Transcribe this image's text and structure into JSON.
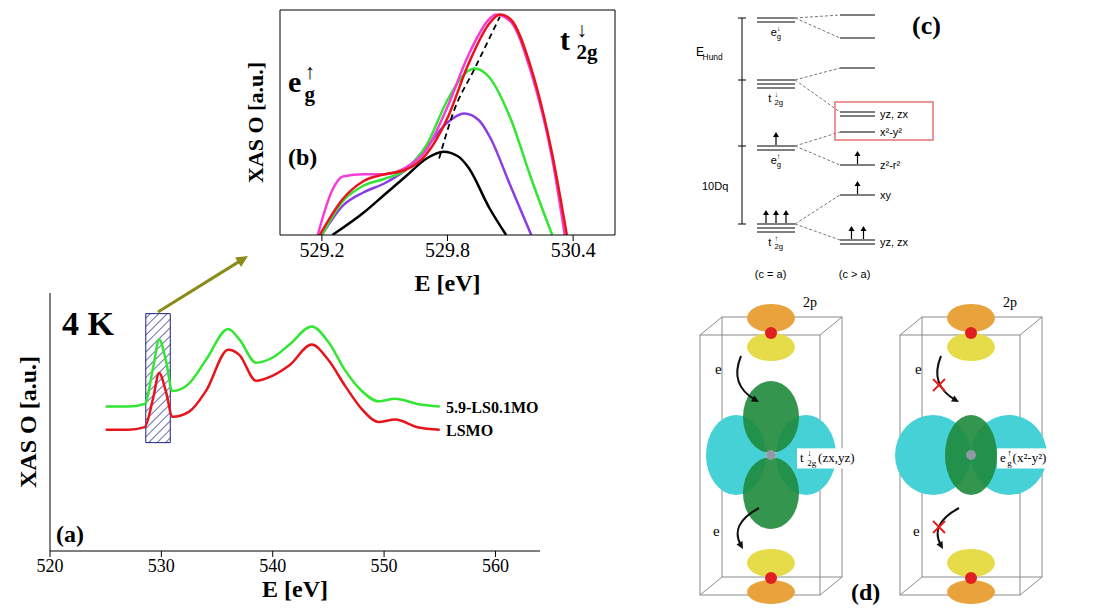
{
  "chart_data": [
    {
      "type": "line",
      "panel_label": "(a)",
      "annotation": "4 K",
      "xlabel": "E [eV]",
      "ylabel": "XAS O [a.u.]",
      "xlim": [
        520,
        564
      ],
      "xticks": [
        520,
        530,
        540,
        550,
        560
      ],
      "ylim": [
        0,
        1
      ],
      "tick_labels": "x",
      "shaded_range": {
        "x": [
          528.6,
          530.8
        ],
        "y": [
          0.42,
          0.92
        ]
      },
      "x": [
        525,
        527,
        528.5,
        529.3,
        529.8,
        530.4,
        531,
        532.5,
        534,
        536,
        537,
        538.5,
        540,
        541.5,
        543.5,
        545,
        546.5,
        548,
        549.5,
        551,
        553,
        555
      ],
      "series": [
        {
          "name": "5.9-LS0.1MO",
          "color": "#33e633",
          "values": [
            0.56,
            0.56,
            0.57,
            0.72,
            0.82,
            0.74,
            0.62,
            0.65,
            0.74,
            0.86,
            0.82,
            0.73,
            0.75,
            0.8,
            0.87,
            0.81,
            0.7,
            0.62,
            0.58,
            0.59,
            0.57,
            0.56
          ]
        },
        {
          "name": "LSMO",
          "color": "#e8141b",
          "values": [
            0.47,
            0.47,
            0.48,
            0.6,
            0.69,
            0.62,
            0.52,
            0.54,
            0.62,
            0.78,
            0.76,
            0.66,
            0.68,
            0.72,
            0.8,
            0.74,
            0.64,
            0.55,
            0.5,
            0.51,
            0.48,
            0.47
          ]
        }
      ]
    },
    {
      "type": "line",
      "panel_label": "(b)",
      "xlabel": "E [eV]",
      "ylabel": "XAS O [a.u.]",
      "xlim": [
        529.0,
        530.6
      ],
      "xticks": [
        529.2,
        529.8,
        530.4
      ],
      "ylim": [
        0,
        1
      ],
      "tick_labels": "x",
      "annotations": [
        {
          "base": "e",
          "sub": "g",
          "sup": "↑"
        },
        {
          "base": "t",
          "sub": "2g",
          "sup": "↓"
        }
      ],
      "series": [
        {
          "color": "#000000",
          "x": [
            529.25,
            529.4,
            529.5,
            529.6,
            529.7,
            529.78,
            529.85,
            529.9,
            530.0,
            530.08
          ],
          "values": [
            0,
            0.1,
            0.18,
            0.26,
            0.34,
            0.37,
            0.35,
            0.3,
            0.12,
            0
          ]
        },
        {
          "color": "#8b3ee0",
          "x": [
            529.2,
            529.3,
            529.4,
            529.5,
            529.6,
            529.7,
            529.8,
            529.88,
            529.95,
            530.0,
            530.1,
            530.2
          ],
          "values": [
            0,
            0.13,
            0.19,
            0.23,
            0.29,
            0.39,
            0.5,
            0.54,
            0.51,
            0.44,
            0.22,
            0
          ]
        },
        {
          "color": "#33e633",
          "x": [
            529.2,
            529.3,
            529.4,
            529.5,
            529.6,
            529.7,
            529.8,
            529.9,
            529.93,
            530.0,
            530.1,
            530.2,
            530.3
          ],
          "values": [
            0,
            0.15,
            0.22,
            0.25,
            0.29,
            0.4,
            0.6,
            0.73,
            0.74,
            0.7,
            0.52,
            0.25,
            0
          ]
        },
        {
          "color": "#f23fd8",
          "x": [
            529.18,
            529.25,
            529.3,
            529.4,
            529.5,
            529.6,
            529.7,
            529.8,
            529.9,
            530.0,
            530.03,
            530.1,
            530.2,
            530.3,
            530.36
          ],
          "values": [
            0,
            0.2,
            0.26,
            0.27,
            0.27,
            0.3,
            0.38,
            0.57,
            0.8,
            0.96,
            0.98,
            0.95,
            0.72,
            0.34,
            0
          ]
        },
        {
          "color": "#e8141b",
          "x": [
            529.19,
            529.3,
            529.4,
            529.5,
            529.6,
            529.7,
            529.8,
            529.9,
            530.0,
            530.05,
            530.1,
            530.2,
            530.3,
            530.37
          ],
          "values": [
            0,
            0.16,
            0.24,
            0.27,
            0.29,
            0.36,
            0.52,
            0.76,
            0.94,
            0.98,
            0.96,
            0.74,
            0.36,
            0
          ]
        }
      ],
      "peak_trend": {
        "color": "#000000",
        "line_style": "dashed",
        "x": [
          529.76,
          529.83,
          529.93,
          530.05
        ],
        "values": [
          0.34,
          0.55,
          0.74,
          0.97
        ]
      }
    }
  ],
  "diagram_c": {
    "panel_label": "(c)",
    "gaps": [
      {
        "base": "E",
        "sub": "Hund"
      },
      "10Dq"
    ],
    "columns": [
      {
        "label": "(c = a)",
        "levels": [
          {
            "label": {
              "base": "e",
              "sub": "g",
              "sup": "↓"
            },
            "lines": 2,
            "electrons": 0
          },
          {
            "label": {
              "base": "t",
              "sub": "2g",
              "sup": "↓"
            },
            "lines": 3,
            "electrons": 0
          },
          {
            "label": {
              "base": "e",
              "sub": "g",
              "sup": "↑"
            },
            "lines": 2,
            "electrons": 1
          },
          {
            "label": {
              "base": "t",
              "sub": "2g",
              "sup": "↑"
            },
            "lines": 3,
            "electrons": 3
          }
        ]
      },
      {
        "label": "(c > a)",
        "levels": [
          {
            "label": null,
            "lines": 1,
            "electrons": 0
          },
          {
            "label": null,
            "lines": 1,
            "electrons": 0
          },
          {
            "label": null,
            "lines": 1,
            "electrons": 0
          },
          {
            "label": "yz, zx",
            "lines": 2,
            "electrons": 0,
            "highlighted": true
          },
          {
            "label": "x²-y²",
            "lines": 1,
            "electrons": 0,
            "highlighted": true
          },
          {
            "label": "z²-r²",
            "lines": 1,
            "electrons": 1
          },
          {
            "label": "xy",
            "lines": 1,
            "electrons": 1
          },
          {
            "label": "yz, zx",
            "lines": 2,
            "electrons": 2
          }
        ]
      }
    ]
  },
  "diagram_d": {
    "panel_label": "(d)",
    "panels": [
      {
        "ligand": "2p",
        "electron": "e",
        "orbital": {
          "base": "t",
          "sub": "2g",
          "sup": "↓",
          "suffix": "(zx,yz)"
        }
      },
      {
        "ligand": "2p",
        "electron": "e",
        "orbital": {
          "base": "e",
          "sub": "g",
          "sup": "↑",
          "suffix": "(x²-y²)"
        }
      }
    ]
  }
}
